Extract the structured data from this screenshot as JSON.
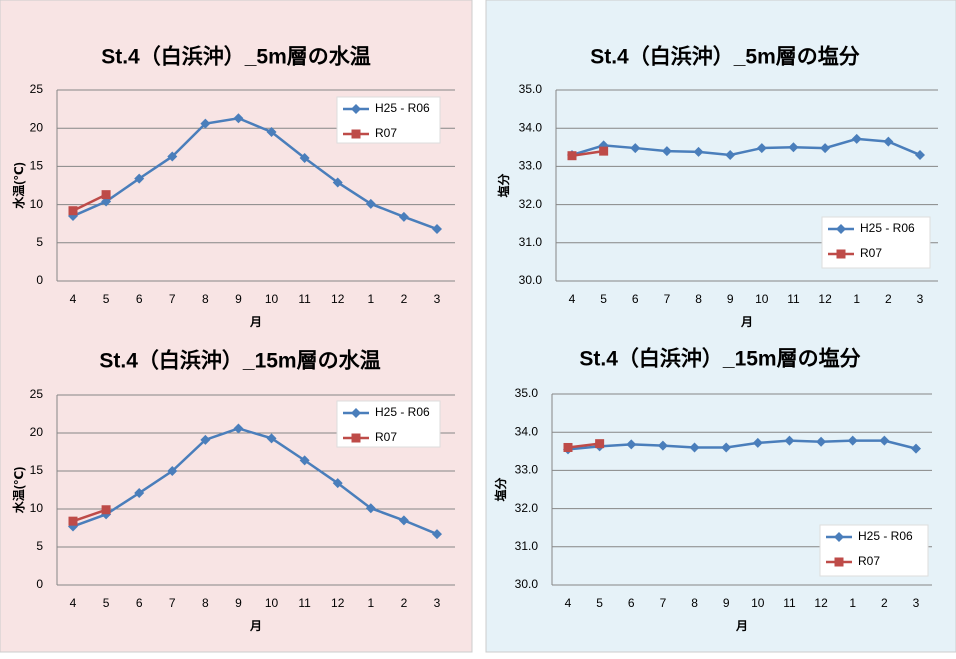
{
  "chart_data": [
    {
      "type": "line",
      "title": "St.4（白浜沖）_5m層の水温",
      "x_label": "月",
      "y_label": "水温(℃)",
      "categories": [
        "4",
        "5",
        "6",
        "7",
        "8",
        "9",
        "10",
        "11",
        "12",
        "1",
        "2",
        "3"
      ],
      "series": [
        {
          "name": "H25 - R06",
          "color": "#4a7ebb",
          "marker": "diamond",
          "values": [
            8.5,
            10.4,
            13.4,
            16.3,
            20.6,
            21.3,
            19.5,
            16.1,
            12.9,
            10.1,
            8.4,
            6.8
          ]
        },
        {
          "name": "R07",
          "color": "#be4b48",
          "marker": "square",
          "values": [
            9.2,
            11.3,
            null,
            null,
            null,
            null,
            null,
            null,
            null,
            null,
            null,
            null
          ]
        }
      ],
      "ylim": [
        0,
        25
      ],
      "yticks": [
        0,
        5,
        10,
        15,
        20,
        25
      ],
      "grid": true,
      "legend": "upper right"
    },
    {
      "type": "line",
      "title": "St.4（白浜沖）_5m層の塩分",
      "x_label": "月",
      "y_label": "塩分",
      "categories": [
        "4",
        "5",
        "6",
        "7",
        "8",
        "9",
        "10",
        "11",
        "12",
        "1",
        "2",
        "3"
      ],
      "series": [
        {
          "name": "H25 - R06",
          "color": "#4a7ebb",
          "marker": "diamond",
          "values": [
            33.3,
            33.55,
            33.48,
            33.4,
            33.38,
            33.3,
            33.48,
            33.5,
            33.48,
            33.72,
            33.65,
            33.3
          ]
        },
        {
          "name": "R07",
          "color": "#be4b48",
          "marker": "square",
          "values": [
            33.28,
            33.4,
            null,
            null,
            null,
            null,
            null,
            null,
            null,
            null,
            null,
            null
          ]
        }
      ],
      "ylim": [
        30,
        35
      ],
      "yticks": [
        {
          "value": 30,
          "label": "30.0"
        },
        {
          "value": 31,
          "label": "31.0"
        },
        {
          "value": 32,
          "label": "32.0"
        },
        {
          "value": 33,
          "label": "33.0"
        },
        {
          "value": 34,
          "label": "34.0"
        },
        {
          "value": 35,
          "label": "35.0"
        }
      ],
      "grid": true,
      "legend": "lower right"
    },
    {
      "type": "line",
      "title": "St.4（白浜沖）_15m層の水温",
      "x_label": "月",
      "y_label": "水温(℃)",
      "categories": [
        "4",
        "5",
        "6",
        "7",
        "8",
        "9",
        "10",
        "11",
        "12",
        "1",
        "2",
        "3"
      ],
      "series": [
        {
          "name": "H25 - R06",
          "color": "#4a7ebb",
          "marker": "diamond",
          "values": [
            7.7,
            9.3,
            12.1,
            15.0,
            19.1,
            20.6,
            19.3,
            16.4,
            13.4,
            10.1,
            8.5,
            6.7
          ]
        },
        {
          "name": "R07",
          "color": "#be4b48",
          "marker": "square",
          "values": [
            8.4,
            9.9,
            null,
            null,
            null,
            null,
            null,
            null,
            null,
            null,
            null,
            null
          ]
        }
      ],
      "ylim": [
        0,
        25
      ],
      "yticks": [
        0,
        5,
        10,
        15,
        20,
        25
      ],
      "grid": true,
      "legend": "upper right"
    },
    {
      "type": "line",
      "title": "St.4（白浜沖）_15m層の塩分",
      "x_label": "月",
      "y_label": "塩分",
      "categories": [
        "4",
        "5",
        "6",
        "7",
        "8",
        "9",
        "10",
        "11",
        "12",
        "1",
        "2",
        "3"
      ],
      "series": [
        {
          "name": "H25 - R06",
          "color": "#4a7ebb",
          "marker": "diamond",
          "values": [
            33.55,
            33.63,
            33.68,
            33.65,
            33.6,
            33.6,
            33.72,
            33.78,
            33.75,
            33.78,
            33.78,
            33.57
          ]
        },
        {
          "name": "R07",
          "color": "#be4b48",
          "marker": "square",
          "values": [
            33.6,
            33.7,
            null,
            null,
            null,
            null,
            null,
            null,
            null,
            null,
            null,
            null
          ]
        }
      ],
      "ylim": [
        30,
        35
      ],
      "yticks": [
        {
          "value": 30,
          "label": "30.0"
        },
        {
          "value": 31,
          "label": "31.0"
        },
        {
          "value": 32,
          "label": "32.0"
        },
        {
          "value": 33,
          "label": "33.0"
        },
        {
          "value": 34,
          "label": "34.0"
        },
        {
          "value": 35,
          "label": "35.0"
        }
      ],
      "grid": true,
      "legend": "lower right"
    }
  ]
}
